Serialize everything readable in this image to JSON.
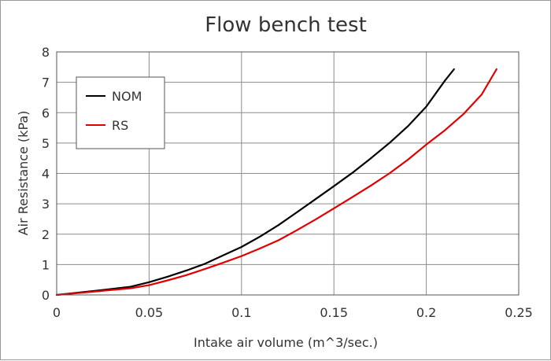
{
  "chart_data": {
    "type": "line",
    "title": "Flow bench test",
    "xlabel": "Intake air volume (m^3/sec.)",
    "ylabel": "Air Resistance (kPa)",
    "xlim": [
      0,
      0.25
    ],
    "ylim": [
      0,
      8
    ],
    "x_ticks": [
      0,
      0.05,
      0.1,
      0.15,
      0.2,
      0.25
    ],
    "x_tick_labels": [
      "0",
      "0.05",
      "0.1",
      "0.15",
      "0.2",
      "0.25"
    ],
    "y_ticks": [
      0,
      1,
      2,
      3,
      4,
      5,
      6,
      7,
      8
    ],
    "y_tick_labels": [
      "0",
      "1",
      "2",
      "3",
      "4",
      "5",
      "6",
      "7",
      "8"
    ],
    "grid": true,
    "legend_position": "top-left",
    "series": [
      {
        "name": "NOM",
        "color": "#000000",
        "points": [
          [
            0,
            0
          ],
          [
            0.02,
            0.13
          ],
          [
            0.04,
            0.27
          ],
          [
            0.05,
            0.42
          ],
          [
            0.06,
            0.6
          ],
          [
            0.07,
            0.8
          ],
          [
            0.08,
            1.02
          ],
          [
            0.09,
            1.3
          ],
          [
            0.1,
            1.58
          ],
          [
            0.11,
            1.92
          ],
          [
            0.12,
            2.3
          ],
          [
            0.13,
            2.72
          ],
          [
            0.14,
            3.15
          ],
          [
            0.15,
            3.58
          ],
          [
            0.16,
            4.02
          ],
          [
            0.17,
            4.5
          ],
          [
            0.18,
            5.0
          ],
          [
            0.19,
            5.55
          ],
          [
            0.2,
            6.2
          ],
          [
            0.21,
            7.05
          ],
          [
            0.215,
            7.43
          ]
        ]
      },
      {
        "name": "RS",
        "color": "#e00000",
        "points": [
          [
            0,
            0
          ],
          [
            0.02,
            0.11
          ],
          [
            0.04,
            0.22
          ],
          [
            0.05,
            0.32
          ],
          [
            0.06,
            0.48
          ],
          [
            0.07,
            0.65
          ],
          [
            0.08,
            0.85
          ],
          [
            0.09,
            1.06
          ],
          [
            0.1,
            1.28
          ],
          [
            0.11,
            1.53
          ],
          [
            0.12,
            1.8
          ],
          [
            0.13,
            2.13
          ],
          [
            0.14,
            2.48
          ],
          [
            0.15,
            2.85
          ],
          [
            0.16,
            3.22
          ],
          [
            0.17,
            3.6
          ],
          [
            0.18,
            4.0
          ],
          [
            0.19,
            4.45
          ],
          [
            0.2,
            4.95
          ],
          [
            0.21,
            5.42
          ],
          [
            0.22,
            5.95
          ],
          [
            0.23,
            6.6
          ],
          [
            0.238,
            7.43
          ]
        ]
      }
    ]
  }
}
